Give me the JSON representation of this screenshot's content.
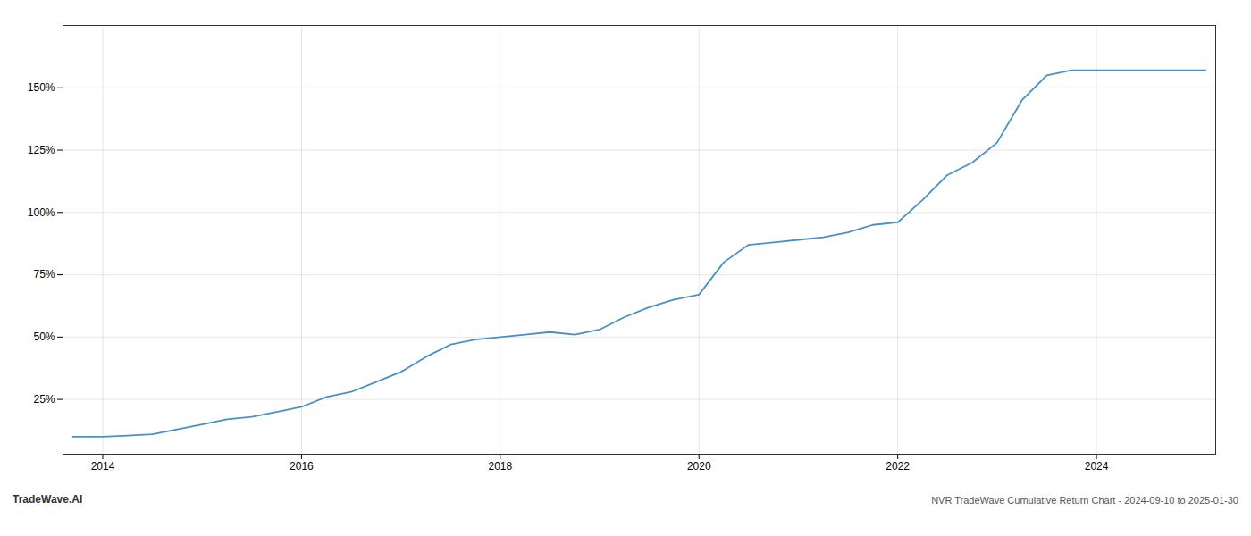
{
  "chart_data": {
    "type": "line",
    "title": "NVR TradeWave Cumulative Return Chart - 2024-09-10 to 2025-01-30",
    "annotations": [
      "TradeWave.AI"
    ],
    "x": [
      2013.7,
      2014.0,
      2014.25,
      2014.5,
      2014.75,
      2015.0,
      2015.25,
      2015.5,
      2015.75,
      2016.0,
      2016.25,
      2016.5,
      2016.75,
      2017.0,
      2017.25,
      2017.5,
      2017.75,
      2018.0,
      2018.25,
      2018.5,
      2018.75,
      2019.0,
      2019.25,
      2019.5,
      2019.75,
      2020.0,
      2020.25,
      2020.5,
      2020.75,
      2021.0,
      2021.25,
      2021.5,
      2021.75,
      2022.0,
      2022.25,
      2022.5,
      2022.75,
      2023.0,
      2023.25,
      2023.5,
      2023.75,
      2024.0,
      2024.25,
      2024.5,
      2024.75,
      2025.0,
      2025.1
    ],
    "values": [
      10,
      10,
      10.5,
      11,
      13,
      15,
      17,
      18,
      20,
      22,
      26,
      28,
      32,
      36,
      42,
      47,
      49,
      50,
      51,
      52,
      51,
      53,
      58,
      62,
      65,
      67,
      80,
      87,
      88,
      89,
      90,
      92,
      95,
      96,
      105,
      115,
      120,
      128,
      145,
      155,
      157,
      157,
      157,
      157,
      157,
      157,
      157
    ],
    "color": "#4a90c4",
    "xlim": [
      2013.6,
      2025.2
    ],
    "xticks": [
      2014,
      2016,
      2018,
      2020,
      2022,
      2024
    ],
    "ylim": [
      3,
      175
    ],
    "yticks": [
      {
        "value": 25,
        "label": "25%"
      },
      {
        "value": 50,
        "label": "50%"
      },
      {
        "value": 75,
        "label": "75%"
      },
      {
        "value": 100,
        "label": "100%"
      },
      {
        "value": 125,
        "label": "125%"
      },
      {
        "value": 150,
        "label": "150%"
      }
    ],
    "grid": true
  }
}
